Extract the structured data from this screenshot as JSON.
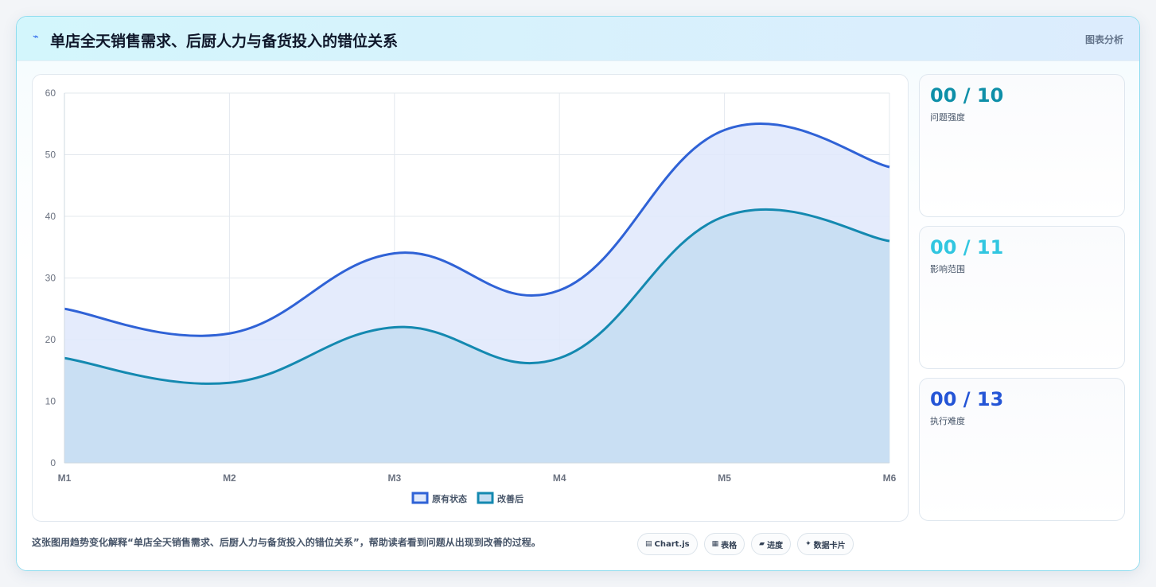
{
  "header": {
    "icon": "chart-line-icon",
    "title": "单店全天销售需求、后厨人力与备货投入的错位关系",
    "tag": "图表分析"
  },
  "chart_data": {
    "type": "area",
    "categories": [
      "M1",
      "M2",
      "M3",
      "M4",
      "M5",
      "M6"
    ],
    "series": [
      {
        "name": "原有状态",
        "values": [
          25,
          21,
          34,
          28,
          54,
          48
        ],
        "color": "#2f62d6",
        "fill": "#dfe8fb"
      },
      {
        "name": "改善后",
        "values": [
          17,
          13,
          22,
          17,
          40,
          36
        ],
        "color": "#1489b0",
        "fill": "#c4ddf1"
      }
    ],
    "y_ticks": [
      "0",
      "10",
      "20",
      "30",
      "40",
      "50",
      "60"
    ],
    "ylim": [
      0,
      60
    ],
    "grid": true,
    "legend": "bottom"
  },
  "stats": [
    {
      "value": "00 / 10",
      "label": "问题强度",
      "color": "#0e8fa8"
    },
    {
      "value": "00 / 11",
      "label": "影响范围",
      "color": "#31c6e0"
    },
    {
      "value": "00 / 13",
      "label": "执行难度",
      "color": "#2455d6"
    }
  ],
  "footer": {
    "note": "这张图用趋势变化解释“单店全天销售需求、后厨人力与备货投入的错位关系”，帮助读者看到问题从出现到改善的过程。",
    "chips": [
      {
        "icon": "chart-icon",
        "glyph": "▤",
        "label": "Chart.js"
      },
      {
        "icon": "table-icon",
        "glyph": "▦",
        "label": "表格"
      },
      {
        "icon": "progress-icon",
        "glyph": "▰",
        "label": "进度"
      },
      {
        "icon": "sparkle-icon",
        "glyph": "✦",
        "label": "数据卡片"
      }
    ]
  }
}
